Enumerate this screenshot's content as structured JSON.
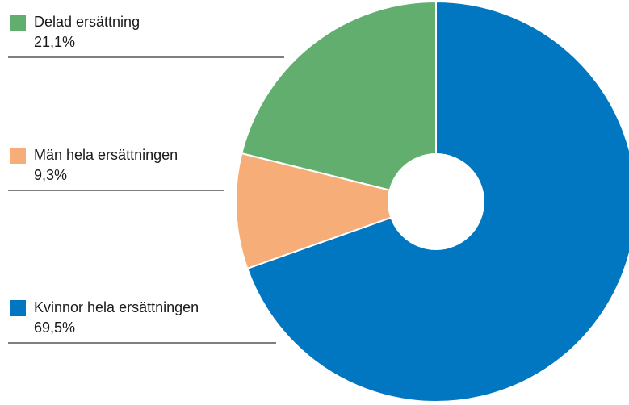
{
  "chart_data": {
    "type": "pie",
    "categories": [
      "Delad ersättning",
      "Män hela ersättningen",
      "Kvinnor hela ersättningen"
    ],
    "values": [
      21.1,
      9.3,
      69.5
    ],
    "value_labels": [
      "21,1%",
      "9,3%",
      "69,5%"
    ],
    "colors": [
      "#62ae6e",
      "#f7ad78",
      "#0077c0"
    ]
  }
}
